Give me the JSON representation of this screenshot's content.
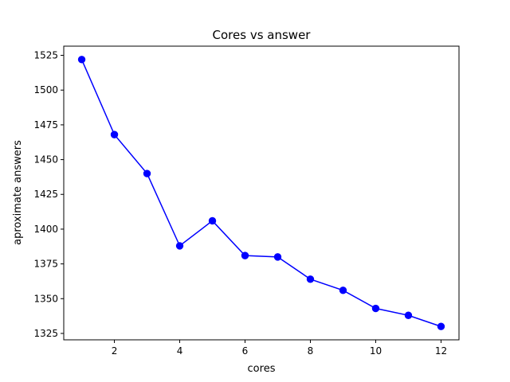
{
  "chart_data": {
    "type": "line",
    "title": "Cores vs answer",
    "xlabel": "cores",
    "ylabel": "aproximate answers",
    "x": [
      1,
      2,
      3,
      4,
      5,
      6,
      7,
      8,
      9,
      10,
      11,
      12
    ],
    "series": [
      {
        "values": [
          1522,
          1468,
          1440,
          1388,
          1406,
          1381,
          1380,
          1364,
          1356,
          1343,
          1338,
          1330
        ],
        "color": "#0000ff",
        "marker": "circle"
      }
    ],
    "xlim": [
      0.45,
      12.55
    ],
    "ylim": [
      1320.4,
      1531.6
    ],
    "xticks": [
      2,
      4,
      6,
      8,
      10,
      12
    ],
    "yticks": [
      1325,
      1350,
      1375,
      1400,
      1425,
      1450,
      1475,
      1500,
      1525
    ],
    "grid": false,
    "legend": "none"
  }
}
